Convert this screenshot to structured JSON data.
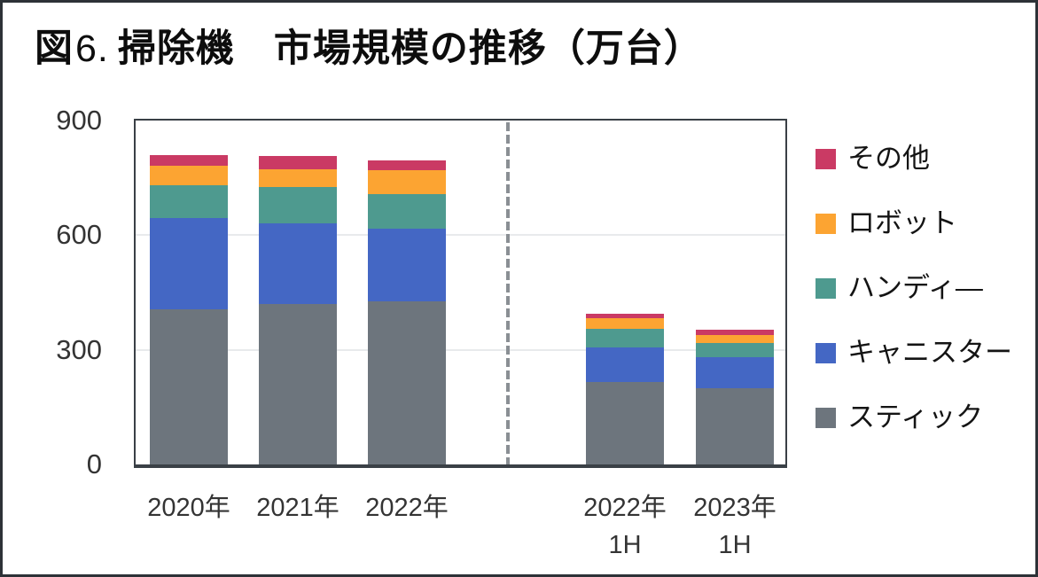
{
  "figure": {
    "title_prefix": "図",
    "title_number": "6.",
    "title_main": "掃除機　市場規模の推移（万台）"
  },
  "chart_data": {
    "type": "bar",
    "stacked": true,
    "title": "図6. 掃除機　市場規模の推移（万台）",
    "unit": "万台",
    "categories": [
      {
        "id": "2020",
        "label": "2020年",
        "sublabel": ""
      },
      {
        "id": "2021",
        "label": "2021年",
        "sublabel": ""
      },
      {
        "id": "2022",
        "label": "2022年",
        "sublabel": ""
      },
      {
        "id": "2022-1h",
        "label": "2022年",
        "sublabel": "1H"
      },
      {
        "id": "2023-1h",
        "label": "2023年",
        "sublabel": "1H"
      }
    ],
    "series": [
      {
        "id": "stick",
        "name": "スティック",
        "color": "#6d757d",
        "values": [
          405,
          420,
          427,
          215,
          200
        ]
      },
      {
        "id": "canister",
        "name": "キャニスター",
        "color": "#4467c4",
        "values": [
          240,
          210,
          190,
          92,
          80
        ]
      },
      {
        "id": "handy",
        "name": "ハンディ―",
        "color": "#4e9a8f",
        "values": [
          85,
          96,
          91,
          48,
          38
        ]
      },
      {
        "id": "robot",
        "name": "ロボット",
        "color": "#fca432",
        "values": [
          51,
          46,
          62,
          27,
          20
        ]
      },
      {
        "id": "other",
        "name": "その他",
        "color": "#ca3a64",
        "values": [
          28,
          36,
          25,
          12,
          14
        ]
      }
    ],
    "totals": [
      809,
      808,
      795,
      394,
      352
    ],
    "y_axis": {
      "min": 0,
      "max": 900,
      "ticks": [
        900,
        600,
        300,
        0
      ],
      "gridlines": [
        600,
        300
      ]
    },
    "grid": true,
    "legend": {
      "position": "right",
      "order_top_to_bottom": [
        "other",
        "robot",
        "handy",
        "canister",
        "stick"
      ]
    },
    "divider_after_category_index": 2,
    "colors": {
      "axis_border": "#3a4046",
      "gridline": "#e8eaec",
      "divider_dash": "#8a8f94",
      "frame_border": "#2d3237"
    }
  }
}
